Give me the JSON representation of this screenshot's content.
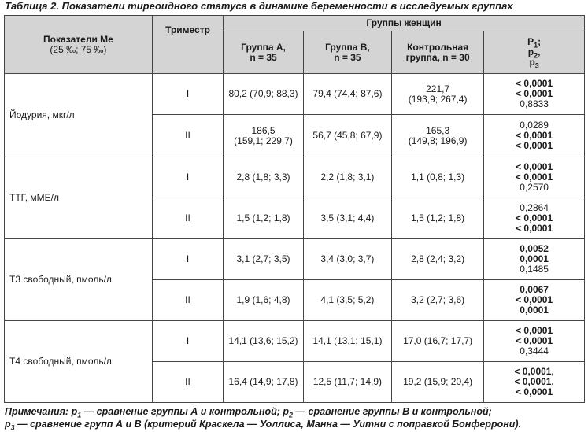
{
  "caption": "Таблица 2. Показатели тиреоидного статуса в динамике беременности в исследуемых группах",
  "header": {
    "indicator": "Показатели Ме (25 ‰; 75 ‰)",
    "trimester": "Триместр",
    "groups": "Группы женщин",
    "group_a": "Группа А, n = 35",
    "group_b": "Группа В, n = 35",
    "control": "Контрольная группа, n = 30",
    "p": "P1; P2; P3"
  },
  "rows": [
    {
      "indicator": "Йодурия, мкг/л",
      "t1": {
        "trimester": "I",
        "a": "80,2 (70,9; 88,3)",
        "b": "79,4 (74,4; 87,6)",
        "c": "221,7 (193,9; 267,4)",
        "p": [
          "< 0,0001",
          "< 0,0001",
          "0,8833"
        ]
      },
      "t2": {
        "trimester": "II",
        "a": "186,5 (159,1; 229,7)",
        "b": "56,7 (45,8; 67,9)",
        "c": "165,3 (149,8; 196,9)",
        "p": [
          "0,0289",
          "< 0,0001",
          "< 0,0001"
        ]
      }
    },
    {
      "indicator": "ТТГ, мМЕ/л",
      "t1": {
        "trimester": "I",
        "a": "2,8 (1,8; 3,3)",
        "b": "2,2 (1,8; 3,1)",
        "c": "1,1 (0,8; 1,3)",
        "p": [
          "< 0,0001",
          "< 0,0001",
          "0,2570"
        ]
      },
      "t2": {
        "trimester": "II",
        "a": "1,5 (1,2; 1,8)",
        "b": "3,5 (3,1; 4,4)",
        "c": "1,5 (1,2; 1,8)",
        "p": [
          "0,2864",
          "< 0,0001",
          "< 0,0001"
        ]
      }
    },
    {
      "indicator": "Т3 свободный, пмоль/л",
      "t1": {
        "trimester": "I",
        "a": "3,1 (2,7; 3,5)",
        "b": "3,4 (3,0; 3,7)",
        "c": "2,8 (2,4; 3,2)",
        "p": [
          "0,0052",
          "0,0001",
          "0,1485"
        ]
      },
      "t2": {
        "trimester": "II",
        "a": "1,9 (1,6; 4,8)",
        "b": "4,1 (3,5; 5,2)",
        "c": "3,2 (2,7; 3,6)",
        "p": [
          "0,0067",
          "< 0,0001",
          "0,0001"
        ]
      }
    },
    {
      "indicator": "Т4 свободный, пмоль/л",
      "t1": {
        "trimester": "I",
        "a": "14,1 (13,6; 15,2)",
        "b": "14,1 (13,1; 15,1)",
        "c": "17,0 (16,7; 17,7)",
        "p": [
          "< 0,0001",
          "< 0,0001",
          "0,3444"
        ]
      },
      "t2": {
        "trimester": "II",
        "a": "16,4 (14,9; 17,8)",
        "b": "12,5 (11,7; 14,9)",
        "c": "19,2 (15,9; 20,4)",
        "p": [
          "< 0,0001,",
          "< 0,0001,",
          "< 0,0001"
        ]
      }
    }
  ],
  "note_line1": "Примечания: p1 — сравнение группы А и контрольной; p2 — сравнение группы В и контрольной;",
  "note_line2": "p3 — сравнение групп А и В (критерий Краскела — Уоллиса, Манна — Уитни с поправкой Бонферрони)."
}
